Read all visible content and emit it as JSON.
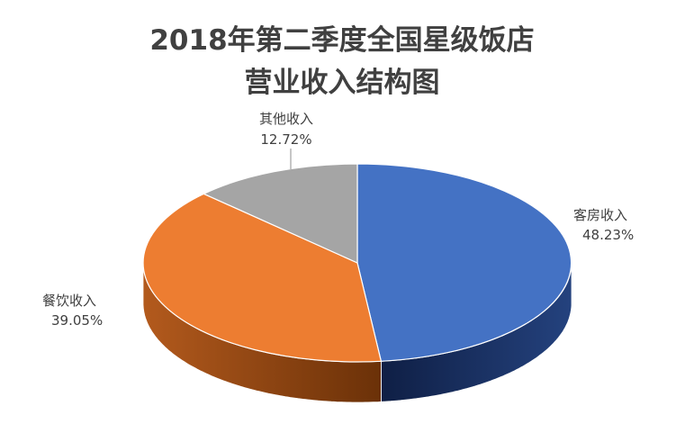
{
  "chart_data": {
    "type": "pie",
    "title": "2018年第二季度全国星级饭店",
    "subtitle": "营业收入结构图",
    "categories": [
      "客房收入",
      "餐饮收入",
      "其他收入"
    ],
    "values": [
      48.23,
      39.05,
      12.72
    ],
    "value_labels": [
      "48.23%",
      "39.05%",
      "12.72%"
    ],
    "colors": [
      "#4472C4",
      "#ED7D31",
      "#A5A5A5"
    ],
    "legend": "none"
  }
}
